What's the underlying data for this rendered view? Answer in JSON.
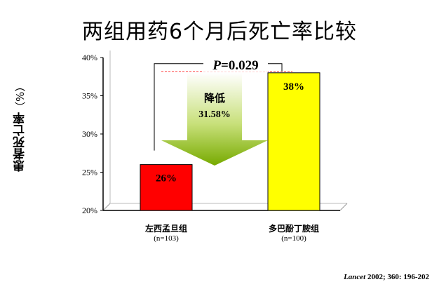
{
  "title": "两组用药6个月后死亡率比较",
  "citation": {
    "journal": "Lancet",
    "rest": " 2002; 360: 196-202"
  },
  "chart_data": {
    "type": "bar",
    "title": "两组用药6个月后死亡率比较",
    "ylabel": "患者死亡率",
    "ylabel_unit": "（%）",
    "ylim": [
      20,
      40
    ],
    "yticks": [
      "20%",
      "25%",
      "30%",
      "35%",
      "40%"
    ],
    "categories": [
      "左西孟旦组",
      "多巴酚丁胺组"
    ],
    "category_sub": [
      "(n=103)",
      "(n=100)"
    ],
    "values": [
      26,
      38
    ],
    "value_labels": [
      "26%",
      "38%"
    ],
    "bar_colors": [
      "#ff0000",
      "#ffff00"
    ],
    "annotation": {
      "p_label": "P",
      "p_value": "=0.029",
      "reduction_title": "降低",
      "reduction_value": "31.58%"
    },
    "grid": false
  }
}
